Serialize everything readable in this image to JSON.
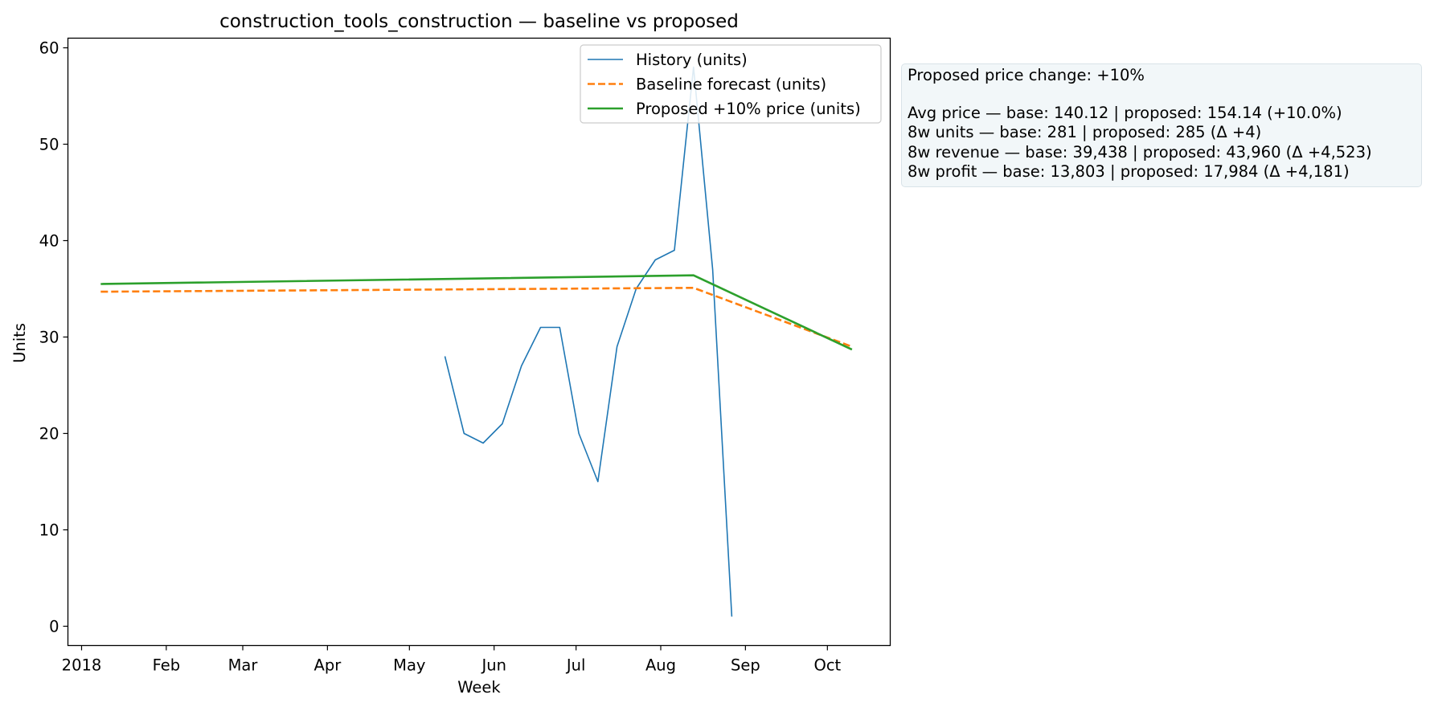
{
  "chart_data": {
    "type": "line",
    "title": "construction_tools_construction — baseline vs proposed",
    "xlabel": "Week",
    "ylabel": "Units",
    "xlim": [
      "2017-12-27",
      "2018-10-24"
    ],
    "ylim": [
      -2,
      61
    ],
    "y_ticks": [
      0,
      10,
      20,
      30,
      40,
      50,
      60
    ],
    "x_ticks": [
      {
        "date": "2018-01-01",
        "label": "2018"
      },
      {
        "date": "2018-02-01",
        "label": "Feb"
      },
      {
        "date": "2018-03-01",
        "label": "Mar"
      },
      {
        "date": "2018-04-01",
        "label": "Apr"
      },
      {
        "date": "2018-05-01",
        "label": "May"
      },
      {
        "date": "2018-06-01",
        "label": "Jun"
      },
      {
        "date": "2018-07-01",
        "label": "Jul"
      },
      {
        "date": "2018-08-01",
        "label": "Aug"
      },
      {
        "date": "2018-09-01",
        "label": "Sep"
      },
      {
        "date": "2018-10-01",
        "label": "Oct"
      }
    ],
    "grid": false,
    "legend_position": "top-right",
    "series": [
      {
        "name": "History (units)",
        "color": "#1f77b4",
        "style": "solid",
        "points": [
          [
            "2018-05-14",
            28
          ],
          [
            "2018-05-21",
            20
          ],
          [
            "2018-05-28",
            19
          ],
          [
            "2018-06-04",
            21
          ],
          [
            "2018-06-11",
            27
          ],
          [
            "2018-06-18",
            31
          ],
          [
            "2018-06-25",
            31
          ],
          [
            "2018-07-02",
            20
          ],
          [
            "2018-07-09",
            15
          ],
          [
            "2018-07-16",
            29
          ],
          [
            "2018-07-23",
            35
          ],
          [
            "2018-07-30",
            38
          ],
          [
            "2018-08-06",
            39
          ],
          [
            "2018-08-13",
            58
          ],
          [
            "2018-08-20",
            37
          ],
          [
            "2018-08-27",
            1
          ]
        ]
      },
      {
        "name": "Baseline forecast (units)",
        "color": "#ff7f0e",
        "style": "dashed",
        "points": [
          [
            "2018-01-08",
            34.7
          ],
          [
            "2018-08-13",
            35.1
          ],
          [
            "2018-10-10",
            29.0
          ]
        ]
      },
      {
        "name": "Proposed +10% price (units)",
        "color": "#2ca02c",
        "style": "solid",
        "points": [
          [
            "2018-01-08",
            35.5
          ],
          [
            "2018-08-13",
            36.4
          ],
          [
            "2018-10-10",
            28.7
          ]
        ]
      }
    ]
  },
  "info": {
    "heading": "Proposed price change: +10%",
    "lines": [
      "Avg price — base: 140.12  |  proposed: 154.14  (+10.0%)",
      "8w units — base: 281  |  proposed: 285  (Δ +4)",
      "8w revenue — base: 39,438  |  proposed: 43,960  (Δ +4,523)",
      "8w profit — base: 13,803  |  proposed: 17,984  (Δ +4,181)"
    ]
  }
}
